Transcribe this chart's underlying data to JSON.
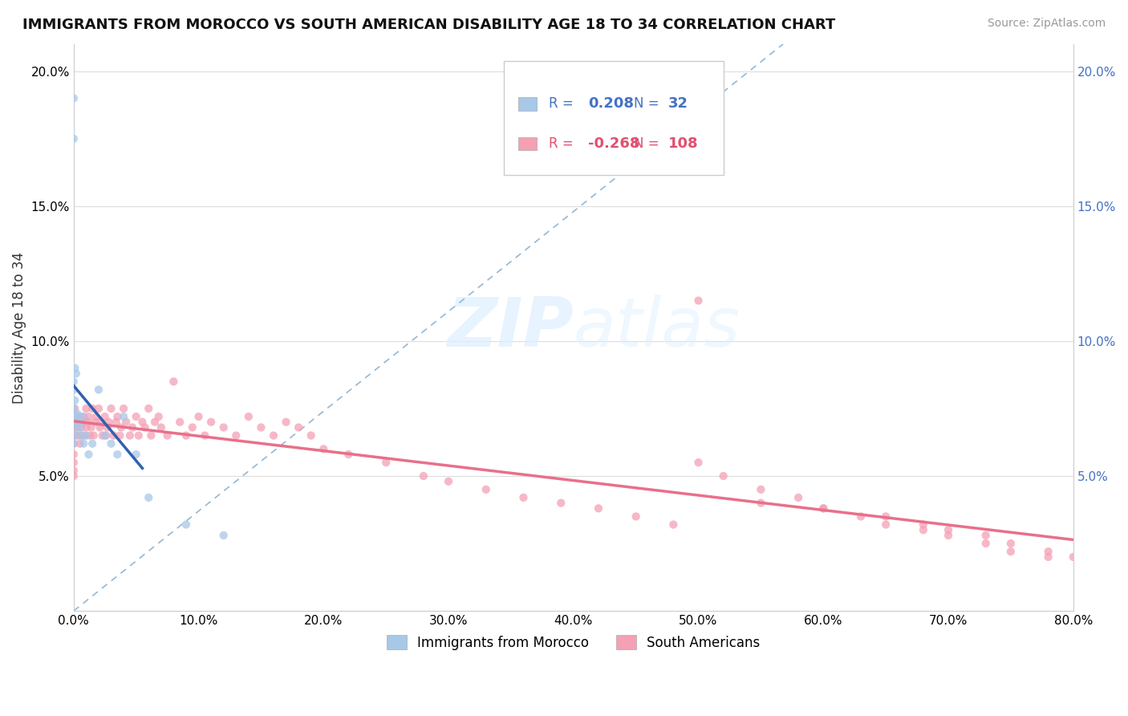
{
  "title": "IMMIGRANTS FROM MOROCCO VS SOUTH AMERICAN DISABILITY AGE 18 TO 34 CORRELATION CHART",
  "source": "Source: ZipAtlas.com",
  "ylabel": "Disability Age 18 to 34",
  "xlim": [
    0.0,
    0.8
  ],
  "ylim": [
    0.0,
    0.21
  ],
  "morocco_R": 0.208,
  "morocco_N": 32,
  "south_R": -0.268,
  "south_N": 108,
  "morocco_color": "#a8c8e8",
  "south_color": "#f4a0b5",
  "morocco_line_color": "#3060b0",
  "south_line_color": "#e8708a",
  "dashed_line_color": "#90b8d8",
  "watermark_color": "#ddeeff",
  "background_color": "#ffffff",
  "morocco_scatter_x": [
    0.0,
    0.0,
    0.0,
    0.0,
    0.0,
    0.0,
    0.0,
    0.0,
    0.001,
    0.001,
    0.001,
    0.001,
    0.002,
    0.002,
    0.003,
    0.004,
    0.005,
    0.006,
    0.007,
    0.008,
    0.01,
    0.012,
    0.015,
    0.02,
    0.025,
    0.03,
    0.035,
    0.04,
    0.05,
    0.06,
    0.09,
    0.12
  ],
  "morocco_scatter_y": [
    0.19,
    0.175,
    0.085,
    0.082,
    0.075,
    0.072,
    0.068,
    0.062,
    0.09,
    0.078,
    0.072,
    0.065,
    0.088,
    0.07,
    0.073,
    0.07,
    0.068,
    0.065,
    0.072,
    0.062,
    0.065,
    0.058,
    0.062,
    0.082,
    0.065,
    0.062,
    0.058,
    0.072,
    0.058,
    0.042,
    0.032,
    0.028
  ],
  "south_scatter_x": [
    0.0,
    0.0,
    0.0,
    0.0,
    0.0,
    0.0,
    0.0,
    0.0,
    0.001,
    0.001,
    0.002,
    0.002,
    0.003,
    0.004,
    0.004,
    0.005,
    0.005,
    0.006,
    0.007,
    0.007,
    0.008,
    0.009,
    0.01,
    0.01,
    0.011,
    0.012,
    0.013,
    0.014,
    0.015,
    0.016,
    0.017,
    0.018,
    0.02,
    0.021,
    0.022,
    0.023,
    0.025,
    0.026,
    0.027,
    0.028,
    0.03,
    0.032,
    0.034,
    0.035,
    0.037,
    0.038,
    0.04,
    0.042,
    0.045,
    0.047,
    0.05,
    0.052,
    0.055,
    0.057,
    0.06,
    0.062,
    0.065,
    0.068,
    0.07,
    0.075,
    0.08,
    0.085,
    0.09,
    0.095,
    0.1,
    0.105,
    0.11,
    0.12,
    0.13,
    0.14,
    0.15,
    0.16,
    0.17,
    0.18,
    0.19,
    0.2,
    0.22,
    0.25,
    0.28,
    0.3,
    0.33,
    0.36,
    0.39,
    0.42,
    0.45,
    0.48,
    0.5,
    0.52,
    0.55,
    0.58,
    0.6,
    0.63,
    0.65,
    0.68,
    0.7,
    0.73,
    0.75,
    0.78,
    0.5,
    0.55,
    0.6,
    0.65,
    0.68,
    0.7,
    0.73,
    0.75,
    0.78,
    0.8
  ],
  "south_scatter_y": [
    0.07,
    0.068,
    0.065,
    0.062,
    0.058,
    0.055,
    0.052,
    0.05,
    0.075,
    0.068,
    0.072,
    0.065,
    0.068,
    0.072,
    0.065,
    0.07,
    0.062,
    0.068,
    0.07,
    0.065,
    0.072,
    0.065,
    0.075,
    0.068,
    0.07,
    0.072,
    0.065,
    0.068,
    0.075,
    0.065,
    0.07,
    0.072,
    0.075,
    0.068,
    0.07,
    0.065,
    0.072,
    0.065,
    0.068,
    0.07,
    0.075,
    0.065,
    0.07,
    0.072,
    0.065,
    0.068,
    0.075,
    0.07,
    0.065,
    0.068,
    0.072,
    0.065,
    0.07,
    0.068,
    0.075,
    0.065,
    0.07,
    0.072,
    0.068,
    0.065,
    0.085,
    0.07,
    0.065,
    0.068,
    0.072,
    0.065,
    0.07,
    0.068,
    0.065,
    0.072,
    0.068,
    0.065,
    0.07,
    0.068,
    0.065,
    0.06,
    0.058,
    0.055,
    0.05,
    0.048,
    0.045,
    0.042,
    0.04,
    0.038,
    0.035,
    0.032,
    0.055,
    0.05,
    0.045,
    0.042,
    0.038,
    0.035,
    0.032,
    0.03,
    0.028,
    0.025,
    0.022,
    0.02,
    0.115,
    0.04,
    0.038,
    0.035,
    0.032,
    0.03,
    0.028,
    0.025,
    0.022,
    0.02
  ]
}
